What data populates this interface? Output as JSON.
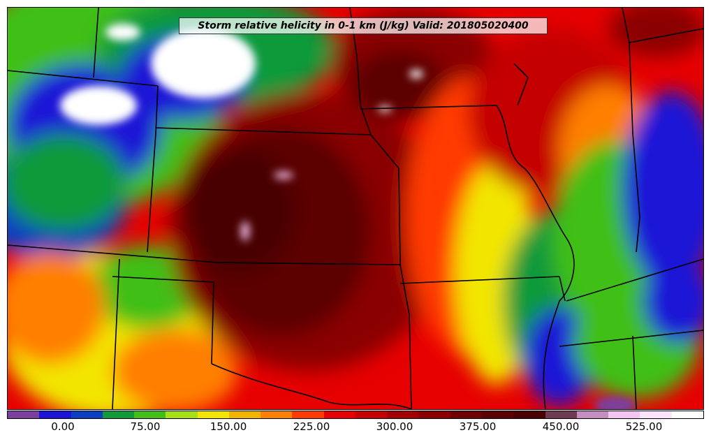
{
  "title": "Storm relative helicity in 0-1 km (J/kg) Valid: 201805020400",
  "colorbar": {
    "colors": [
      "#7b3f9e",
      "#1b13d6",
      "#0b3fbf",
      "#119a3a",
      "#3fbf17",
      "#a6e017",
      "#f2e600",
      "#f0b400",
      "#ff7f00",
      "#ff3a00",
      "#e60000",
      "#c40000",
      "#a30000",
      "#8a0000",
      "#700000",
      "#5c0000",
      "#4a0000",
      "#6e3b52",
      "#c58ec0",
      "#f4c4f2",
      "#fbe3fb",
      "#ffffff"
    ],
    "ticks": [
      "0.00",
      "75.00",
      "150.00",
      "225.00",
      "300.00",
      "375.00",
      "450.00",
      "525.00"
    ]
  }
}
